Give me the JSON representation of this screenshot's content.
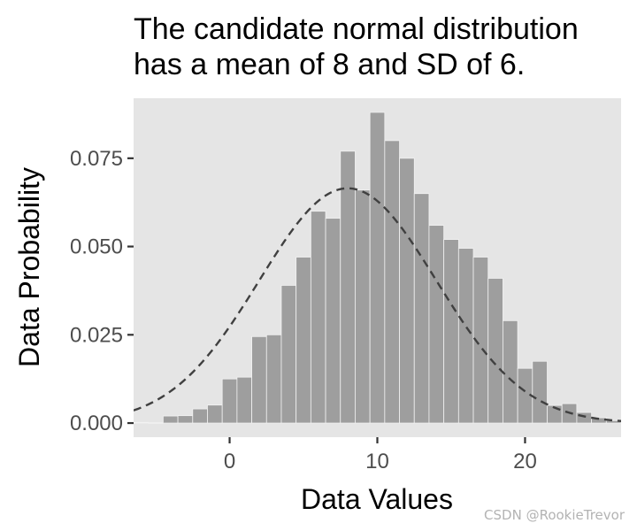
{
  "chart_data": {
    "type": "bar",
    "title": [
      "The candidate normal distribution",
      "has a mean of 8 and SD of 6."
    ],
    "xlabel": "Data Values",
    "ylabel": "Data Probability",
    "xlim": [
      -6.5,
      26.5
    ],
    "ylim": [
      -0.004,
      0.092
    ],
    "x_ticks": [
      0,
      10,
      20
    ],
    "x_tick_labels": [
      "0",
      "10",
      "20"
    ],
    "y_ticks": [
      0,
      0.025,
      0.05,
      0.075
    ],
    "y_tick_labels": [
      "0.000",
      "0.025",
      "0.050",
      "0.075"
    ],
    "bin_width": 1,
    "bins_x": [
      -6,
      -5,
      -4,
      -3,
      -2,
      -1,
      0,
      1,
      2,
      3,
      4,
      5,
      6,
      7,
      8,
      9,
      10,
      11,
      12,
      13,
      14,
      15,
      16,
      17,
      18,
      19,
      20,
      21,
      22,
      23,
      24,
      25,
      26
    ],
    "values": [
      0.0002,
      0.0001,
      0.002,
      0.0021,
      0.004,
      0.0051,
      0.0125,
      0.013,
      0.0245,
      0.025,
      0.039,
      0.047,
      0.06,
      0.058,
      0.077,
      0.066,
      0.088,
      0.08,
      0.075,
      0.065,
      0.056,
      0.052,
      0.0495,
      0.047,
      0.041,
      0.029,
      0.0155,
      0.0175,
      0.005,
      0.0055,
      0.003,
      0.0015,
      0.0007
    ],
    "reference_curve": {
      "distribution": "normal",
      "mean": 8,
      "sd": 6,
      "style": "dashed"
    },
    "grid": false,
    "legend": "none",
    "colors": {
      "panel": "#e5e5e5",
      "bar_fill": "#9e9e9e",
      "bar_outline": "#f2f2f2",
      "curve": "#404040",
      "axis_text": "#4d4d4d",
      "tick": "#333333"
    }
  },
  "watermark": "CSDN @RookieTrevor"
}
